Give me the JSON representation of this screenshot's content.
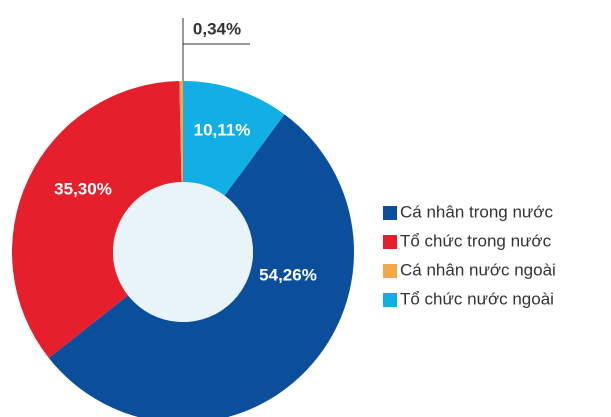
{
  "chart_data": {
    "type": "donut",
    "categories": [
      "Cá nhân trong nước",
      "Tổ chức trong nước",
      "Cá nhân nước ngoài",
      "Tổ chức nước ngoài"
    ],
    "values": [
      54.26,
      35.3,
      0.34,
      10.11
    ],
    "value_labels": [
      "54,26%",
      "35,30%",
      "0,34%",
      "10,11%"
    ],
    "colors": [
      "#0b4f9c",
      "#e51f2b",
      "#f5a74b",
      "#12aee6"
    ],
    "legend": "right"
  }
}
